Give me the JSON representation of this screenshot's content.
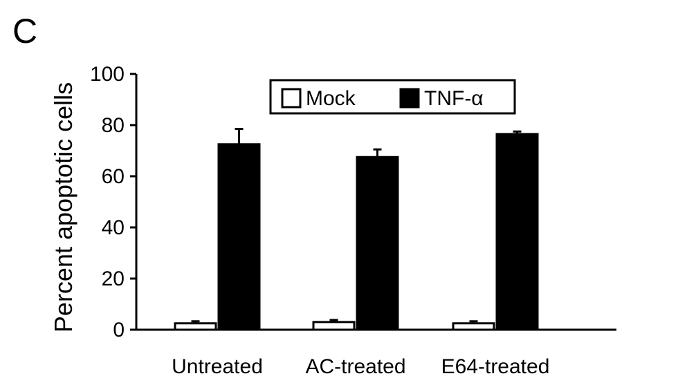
{
  "panel_label": "C",
  "chart_data": {
    "type": "bar",
    "ylabel": "Percent apoptotic cells",
    "xlabel": "",
    "ylim": [
      0,
      100
    ],
    "yticks": [
      "0",
      "20",
      "40",
      "60",
      "80",
      "100"
    ],
    "categories": [
      "Untreated",
      "AC-treated",
      "E64-treated"
    ],
    "grid": false,
    "legend_position": "top-center",
    "series": [
      {
        "name": "Mock",
        "color": "#ffffff",
        "values": [
          2.5,
          3,
          2.5
        ],
        "errors": [
          0.8,
          0.8,
          0.8
        ]
      },
      {
        "name": "TNF-α",
        "color": "#000000",
        "values": [
          72.5,
          67.5,
          76.5
        ],
        "errors": [
          6,
          3,
          1
        ]
      }
    ]
  }
}
